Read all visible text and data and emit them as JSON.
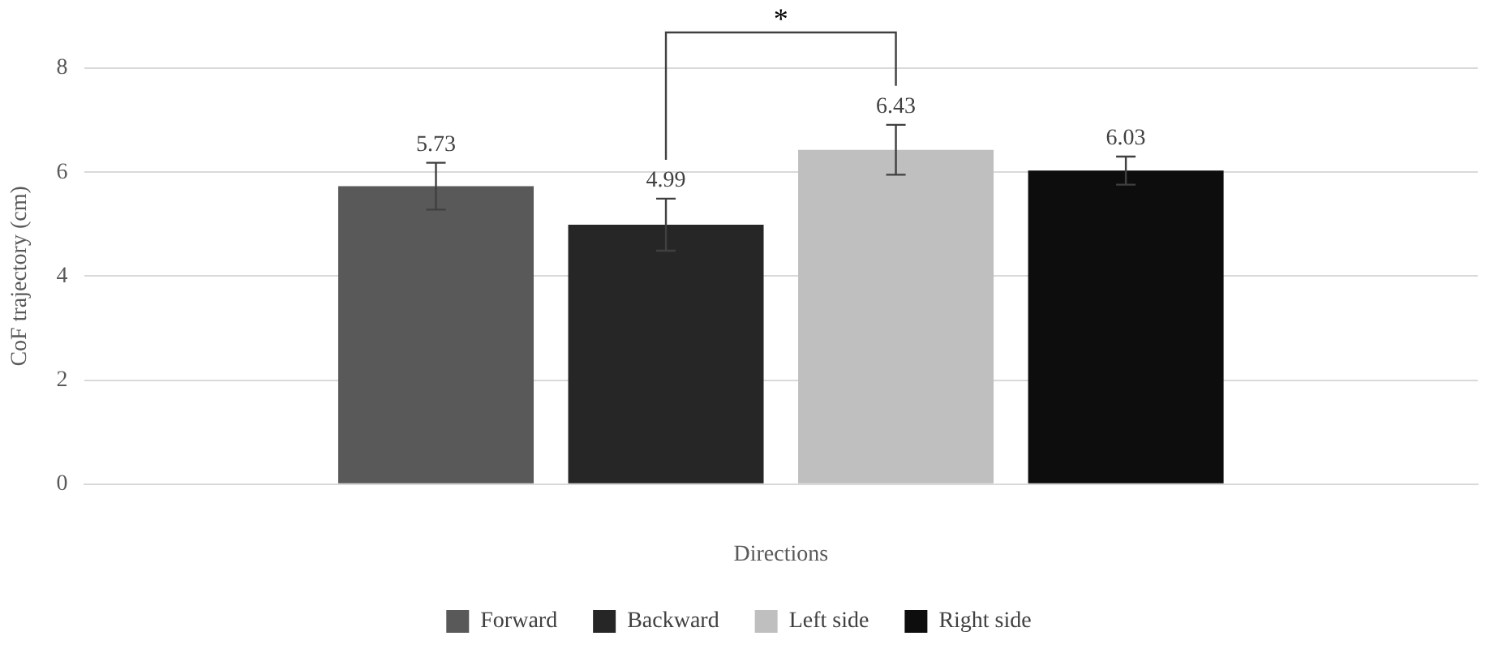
{
  "chart_data": {
    "type": "bar",
    "xlabel": "Directions",
    "ylabel": "CoF trajectory (cm)",
    "categories": [
      null
    ],
    "series": [
      {
        "name": "Forward",
        "color": "#595959",
        "values": [
          5.73
        ],
        "errors": [
          0.45
        ]
      },
      {
        "name": "Backward",
        "color": "#262626",
        "values": [
          4.99
        ],
        "errors": [
          0.5
        ]
      },
      {
        "name": "Left side",
        "color": "#bfbfbf",
        "values": [
          6.43
        ],
        "errors": [
          0.48
        ]
      },
      {
        "name": "Right side",
        "color": "#0d0d0d",
        "values": [
          6.03
        ],
        "errors": [
          0.27
        ]
      }
    ],
    "ylim": [
      0,
      8
    ],
    "yticks": [
      0,
      2,
      4,
      6,
      8
    ],
    "grid": "y",
    "legend": "bottom",
    "data_labels": true,
    "annotations": [
      "*"
    ]
  }
}
